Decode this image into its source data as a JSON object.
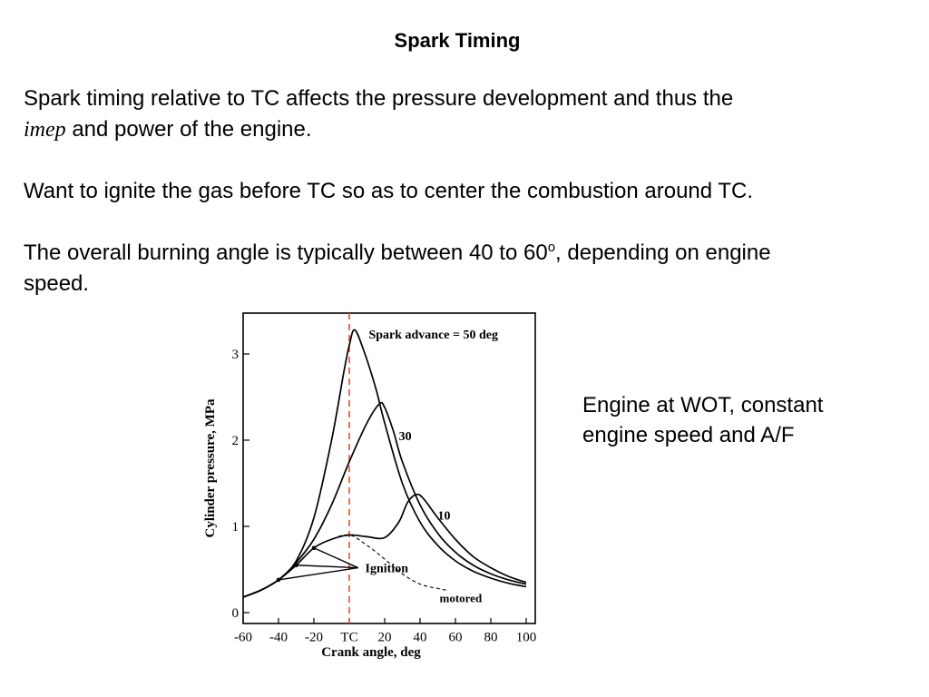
{
  "slide": {
    "title": "Spark Timing",
    "paragraph1": {
      "line1": "Spark timing relative to TC affects the pressure development and thus the",
      "imep": "imep",
      "line2_rest": " and power of the engine."
    },
    "paragraph2": "Want to ignite the gas before TC so as to center the combustion around TC.",
    "paragraph3": {
      "before_sup": "The overall burning angle is typically between 40 to 60",
      "sup": "o",
      "after_sup": ", depending on engine",
      "line2": "speed."
    },
    "caption": {
      "line1": "Engine at WOT, constant",
      "line2": "engine speed and A/F"
    }
  },
  "chart_data": {
    "type": "line",
    "xlabel": "Crank angle, deg",
    "ylabel": "Cylinder pressure, MPa",
    "xlim": [
      -60,
      100
    ],
    "ylim": [
      0,
      3.5
    ],
    "x_ticks": [
      "-60",
      "-40",
      "-20",
      "TC",
      "20",
      "40",
      "60",
      "80",
      "100"
    ],
    "y_ticks": [
      "0",
      "1",
      "2",
      "3"
    ],
    "tc_line_color": "#e0502a",
    "series": [
      {
        "name": "Spark advance = 50 deg",
        "points": [
          [
            -60,
            0.18
          ],
          [
            -50,
            0.26
          ],
          [
            -40,
            0.38
          ],
          [
            -30,
            0.6
          ],
          [
            -20,
            1.1
          ],
          [
            -10,
            2.0
          ],
          [
            -3,
            2.8
          ],
          [
            0,
            3.1
          ],
          [
            3,
            3.28
          ],
          [
            8,
            3.05
          ],
          [
            15,
            2.6
          ],
          [
            20,
            2.2
          ],
          [
            30,
            1.5
          ],
          [
            40,
            1.05
          ],
          [
            50,
            0.78
          ],
          [
            60,
            0.6
          ],
          [
            70,
            0.48
          ],
          [
            80,
            0.4
          ],
          [
            90,
            0.34
          ],
          [
            100,
            0.3
          ]
        ]
      },
      {
        "name": "30",
        "points": [
          [
            -60,
            0.18
          ],
          [
            -50,
            0.26
          ],
          [
            -40,
            0.38
          ],
          [
            -30,
            0.58
          ],
          [
            -20,
            0.85
          ],
          [
            -10,
            1.25
          ],
          [
            0,
            1.75
          ],
          [
            10,
            2.2
          ],
          [
            17,
            2.42
          ],
          [
            20,
            2.38
          ],
          [
            25,
            2.1
          ],
          [
            30,
            1.75
          ],
          [
            40,
            1.25
          ],
          [
            50,
            0.92
          ],
          [
            60,
            0.7
          ],
          [
            70,
            0.55
          ],
          [
            80,
            0.45
          ],
          [
            90,
            0.38
          ],
          [
            100,
            0.33
          ]
        ]
      },
      {
        "name": "10",
        "points": [
          [
            -60,
            0.18
          ],
          [
            -50,
            0.26
          ],
          [
            -40,
            0.38
          ],
          [
            -30,
            0.55
          ],
          [
            -20,
            0.75
          ],
          [
            -10,
            0.85
          ],
          [
            0,
            0.9
          ],
          [
            10,
            0.88
          ],
          [
            20,
            0.87
          ],
          [
            28,
            1.05
          ],
          [
            33,
            1.28
          ],
          [
            38,
            1.37
          ],
          [
            42,
            1.32
          ],
          [
            50,
            1.1
          ],
          [
            60,
            0.85
          ],
          [
            70,
            0.65
          ],
          [
            80,
            0.52
          ],
          [
            90,
            0.42
          ],
          [
            100,
            0.35
          ]
        ]
      },
      {
        "name": "motored",
        "dashed": true,
        "points": [
          [
            -60,
            0.18
          ],
          [
            -50,
            0.26
          ],
          [
            -40,
            0.38
          ],
          [
            -30,
            0.55
          ],
          [
            -20,
            0.75
          ],
          [
            -10,
            0.85
          ],
          [
            0,
            0.9
          ],
          [
            10,
            0.78
          ],
          [
            20,
            0.62
          ],
          [
            30,
            0.45
          ],
          [
            40,
            0.33
          ],
          [
            50,
            0.28
          ],
          [
            55,
            0.26
          ]
        ]
      }
    ],
    "annotations": [
      {
        "text": "Spark advance = 50 deg",
        "points_to": [
          3,
          3.28
        ]
      },
      {
        "text": "30",
        "points_to": [
          25,
          2.1
        ]
      },
      {
        "text": "10",
        "points_to": [
          42,
          1.32
        ]
      },
      {
        "text": "Ignition",
        "points_to": [
          [
            -30,
            0.55
          ],
          [
            -20,
            0.75
          ],
          [
            -40,
            0.38
          ]
        ]
      },
      {
        "text": "motored",
        "points_to": [
          55,
          0.26
        ]
      }
    ]
  }
}
